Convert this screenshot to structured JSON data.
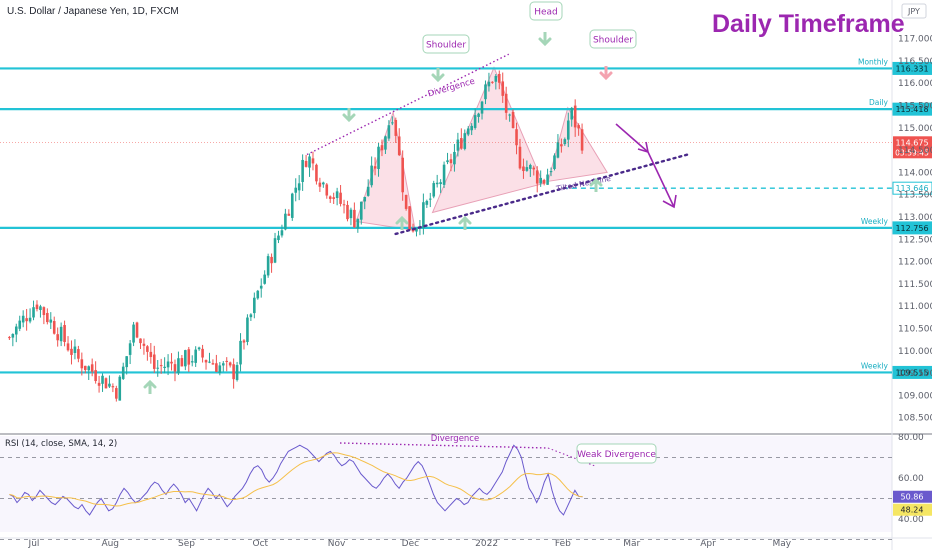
{
  "header": {
    "symbol_title": "U.S. Dollar / Japanese Yen, 1D, FXCM",
    "currency": "JPY",
    "big_title": "Daily Timeframe"
  },
  "colors": {
    "up": "#26a69a",
    "down": "#ef5350",
    "level": "#22c3d6",
    "accent": "#9c27b0",
    "pattern_fill": "#f7c6d4",
    "rsi_line": "#6a5acd",
    "rsi_ma": "#f5c04a"
  },
  "annotations": {
    "shoulder_left": "Shoulder",
    "head": "Head",
    "shoulder_right": "Shoulder",
    "divergence_price": "Divergence",
    "tilted_neckline": "Tilted Neckline",
    "divergence_rsi": "Divergence",
    "weak_divergence": "Weak Divergence"
  },
  "indicator": {
    "label": "RSI (14, close, SMA, 14, 2)",
    "rsi_value": "50.86",
    "ma_value": "48.24",
    "ticks": [
      "80.00",
      "60.00",
      "40.00"
    ]
  },
  "chart_data": {
    "type": "candlestick",
    "symbol": "U.S. Dollar / Japanese Yen, 1D, FXCM",
    "y_ticks": [
      "117.000",
      "116.500",
      "116.000",
      "115.500",
      "115.000",
      "114.500",
      "114.000",
      "113.500",
      "113.000",
      "112.500",
      "112.000",
      "111.500",
      "111.000",
      "110.500",
      "110.000",
      "109.500",
      "109.000",
      "108.500",
      "108.000"
    ],
    "ylim": [
      107.85,
      117.25
    ],
    "x_ticks": [
      "Jul",
      "Aug",
      "Sep",
      "Oct",
      "Nov",
      "Dec",
      "2022",
      "Feb",
      "Mar",
      "Apr",
      "May"
    ],
    "levels": [
      {
        "name": "Monthly",
        "value": 116.331,
        "label": "116.331",
        "style": "solid"
      },
      {
        "name": "Daily",
        "value": 115.418,
        "label": "115.418",
        "style": "solid"
      },
      {
        "name": "",
        "value": 113.646,
        "label": "113.646",
        "style": "dashed"
      },
      {
        "name": "Weekly",
        "value": 112.756,
        "label": "112.756",
        "style": "solid"
      },
      {
        "name": "Weekly",
        "value": 109.515,
        "label": "109.515",
        "style": "solid"
      }
    ],
    "current_price": {
      "value": 114.675,
      "label": "114.675",
      "countdown": "03:59:45"
    },
    "pattern": "Head and Shoulders",
    "anchors": [
      {
        "date": "2021-06-21",
        "close": 110.3
      },
      {
        "date": "2021-07-02",
        "close": 111.1
      },
      {
        "date": "2021-07-19",
        "close": 109.8
      },
      {
        "date": "2021-08-04",
        "close": 109.1
      },
      {
        "date": "2021-08-11",
        "close": 110.6
      },
      {
        "date": "2021-08-19",
        "close": 109.6
      },
      {
        "date": "2021-09-06",
        "close": 109.9
      },
      {
        "date": "2021-09-20",
        "close": 109.5
      },
      {
        "date": "2021-09-30",
        "close": 111.3
      },
      {
        "date": "2021-10-20",
        "close": 114.4
      },
      {
        "date": "2021-10-26",
        "close": 113.8
      },
      {
        "date": "2021-11-09",
        "close": 112.9
      },
      {
        "date": "2021-11-24",
        "close": 115.4
      },
      {
        "date": "2021-11-30",
        "close": 112.8
      },
      {
        "date": "2021-12-03",
        "close": 112.8
      },
      {
        "date": "2021-12-15",
        "close": 114.0
      },
      {
        "date": "2022-01-04",
        "close": 116.2
      },
      {
        "date": "2022-01-07",
        "close": 115.8
      },
      {
        "date": "2022-01-14",
        "close": 114.3
      },
      {
        "date": "2022-01-24",
        "close": 113.8
      },
      {
        "date": "2022-02-02",
        "close": 114.8
      },
      {
        "date": "2022-02-04",
        "close": 115.4
      },
      {
        "date": "2022-02-09",
        "close": 114.675
      }
    ],
    "rsi": {
      "ylim": [
        30,
        82
      ],
      "values": [
        52,
        51,
        48,
        50,
        53,
        52,
        49,
        51,
        54,
        52,
        50,
        48,
        47,
        49,
        51,
        50,
        48,
        46,
        45,
        47,
        44,
        42,
        45,
        48,
        50,
        47,
        44,
        45,
        48,
        52,
        55,
        53,
        50,
        48,
        49,
        51,
        53,
        56,
        58,
        57,
        54,
        52,
        55,
        57,
        55,
        52,
        48,
        50,
        47,
        44,
        48,
        52,
        55,
        53,
        50,
        52,
        49,
        46,
        48,
        51,
        53,
        55,
        58,
        62,
        65,
        66,
        64,
        60,
        58,
        60,
        63,
        67,
        70,
        73,
        74,
        75,
        76,
        75,
        74,
        72,
        70,
        68,
        70,
        72,
        73,
        71,
        68,
        66,
        67,
        69,
        68,
        65,
        62,
        60,
        58,
        56,
        55,
        57,
        60,
        62,
        60,
        57,
        55,
        58,
        60,
        63,
        66,
        68,
        66,
        62,
        57,
        52,
        48,
        46,
        44,
        46,
        48,
        50,
        49,
        47,
        48,
        51,
        53,
        55,
        53,
        52,
        54,
        57,
        60,
        63,
        68,
        72,
        76,
        74,
        70,
        62,
        55,
        52,
        48,
        52,
        58,
        62,
        54,
        48,
        44,
        42,
        46,
        50,
        54,
        51,
        50.86
      ]
    }
  }
}
